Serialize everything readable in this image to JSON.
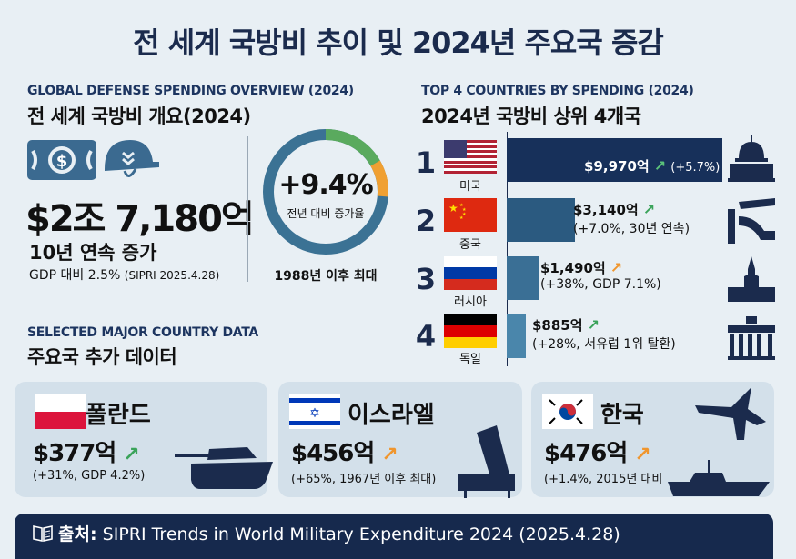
{
  "title": "전 세계 국방비 추이 및 2024년 주요국 증감",
  "overview": {
    "heading_en": "GLOBAL DEFENSE SPENDING OVERVIEW (2024)",
    "heading_kr": "전 세계 국방비 개요(2024)",
    "total": "$2조 7,180억",
    "streak": "10년 연속 증가",
    "gdp": "GDP 대비 2.5%",
    "source_note": "(SIPRI 2025.4.28)",
    "growth": "+9.4%",
    "growth_label": "전년 대비 증가율",
    "growth_note": "1988년 이후 최대"
  },
  "top4": {
    "heading_en": "TOP 4 COUNTRIES BY SPENDING (2024)",
    "heading_kr": "2024년 국방비 상위 4개국",
    "rows": [
      {
        "rank": "1",
        "name": "미국",
        "amount": "$9,970억",
        "change": "(+5.7%)",
        "value": 997,
        "arrow_color": "#3aa35a"
      },
      {
        "rank": "2",
        "name": "중국",
        "amount": "$3,140억",
        "change": "(+7.0%, 30년 연속)",
        "value": 314,
        "arrow_color": "#3aa35a"
      },
      {
        "rank": "3",
        "name": "러시아",
        "amount": "$1,490억",
        "change": "(+38%, GDP 7.1%)",
        "value": 149,
        "arrow_color": "#f0962e"
      },
      {
        "rank": "4",
        "name": "독일",
        "amount": "$885억",
        "change": "(+28%, 서유럽 1위 탈환)",
        "value": 88.5,
        "arrow_color": "#3aa35a"
      }
    ]
  },
  "selected": {
    "heading_en": "SELECTED MAJOR COUNTRY DATA",
    "heading_kr": "주요국 추가 데이터",
    "cards": [
      {
        "name": "폴란드",
        "amount": "$377억",
        "note": "(+31%, GDP 4.2%)",
        "arrow": "↗",
        "arrow_color": "#3aa35a"
      },
      {
        "name": "이스라엘",
        "amount": "$456억",
        "note": "(+65%, 1967년 이후 최대)",
        "arrow": "↗",
        "arrow_color": "#f0962e"
      },
      {
        "name": "한국",
        "amount": "$476억",
        "note": "(+1.4%, 2015년 대비",
        "arrow": "↗",
        "arrow_color": "#f0962e"
      }
    ]
  },
  "footer": {
    "label": "출처:",
    "text": "SIPRI Trends in World Military Expenditure 2024 (2025.4.28)"
  },
  "arrow": "↗",
  "colors": {
    "navy": "#16294d",
    "green": "#3aa35a",
    "orange": "#f0962e",
    "steel": "#3a6f95"
  }
}
